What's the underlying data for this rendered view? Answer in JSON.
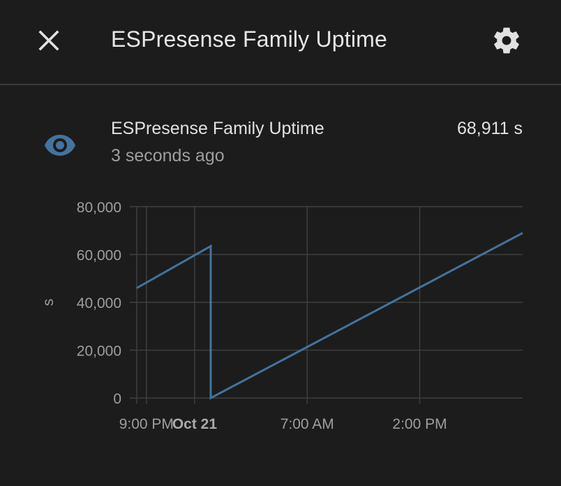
{
  "header": {
    "title": "ESPresense Family Uptime",
    "close_icon": "close-icon",
    "settings_icon": "gear-icon"
  },
  "entity": {
    "icon": "eye-icon",
    "icon_color": "#44739e",
    "name": "ESPresense Family Uptime",
    "last_changed": "3 seconds ago",
    "value": "68,911 s"
  },
  "chart_data": {
    "type": "line",
    "ylabel": "s",
    "ylim": [
      0,
      80000
    ],
    "y_ticks": [
      0,
      20000,
      40000,
      60000,
      80000
    ],
    "y_tick_labels": [
      "0",
      "20,000",
      "40,000",
      "60,000",
      "80,000"
    ],
    "x_range_hours": [
      -1.5,
      22.5
    ],
    "x_ticks": [
      {
        "t": -0.9,
        "label": "9:00 PM",
        "bold": false
      },
      {
        "t": 2.1,
        "label": "Oct 21",
        "bold": true
      },
      {
        "t": 9.1,
        "label": "7:00 AM",
        "bold": false
      },
      {
        "t": 16.1,
        "label": "2:00 PM",
        "bold": false
      }
    ],
    "line_color": "#44739e",
    "series": [
      {
        "points": [
          [
            -1.5,
            46000
          ],
          [
            3.1,
            63500
          ],
          [
            3.1,
            0
          ],
          [
            22.5,
            69000
          ]
        ]
      }
    ],
    "grid": true
  }
}
